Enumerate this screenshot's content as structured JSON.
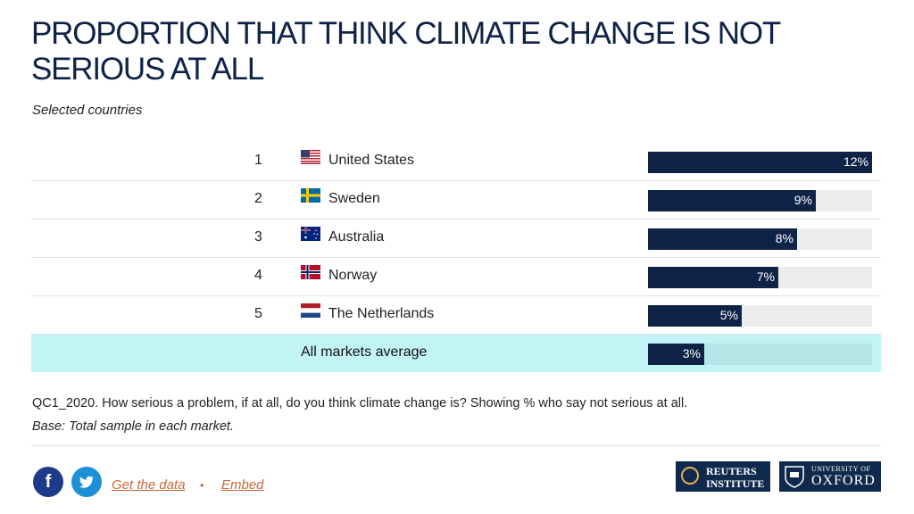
{
  "title": "PROPORTION THAT THINK CLIMATE CHANGE IS NOT SERIOUS AT ALL",
  "subtitle": "Selected countries",
  "chart_data": {
    "type": "bar",
    "orientation": "horizontal",
    "title": "PROPORTION THAT THINK CLIMATE CHANGE IS NOT SERIOUS AT ALL",
    "subtitle": "Selected countries",
    "xlim": [
      0,
      12
    ],
    "rows": [
      {
        "rank": "1",
        "flag": "us-flag-icon",
        "category": "United States",
        "value": 12,
        "label": "12%"
      },
      {
        "rank": "2",
        "flag": "sweden-flag-icon",
        "category": "Sweden",
        "value": 9,
        "label": "9%"
      },
      {
        "rank": "3",
        "flag": "australia-flag-icon",
        "category": "Australia",
        "value": 8,
        "label": "8%"
      },
      {
        "rank": "4",
        "flag": "norway-flag-icon",
        "category": "Norway",
        "value": 7,
        "label": "7%"
      },
      {
        "rank": "5",
        "flag": "netherlands-flag-icon",
        "category": "The Netherlands",
        "value": 5,
        "label": "5%"
      }
    ],
    "average": {
      "category": "All markets average",
      "value": 3,
      "label": "3%"
    },
    "colors": {
      "bar": "#0f2347",
      "track": "#ececec",
      "average_band": "#c2f3f5"
    }
  },
  "footnote": {
    "question": "QC1_2020. How serious a problem, if at all, do you think climate change is? Showing % who say not serious at all.",
    "base": "Base: Total sample in each market."
  },
  "footer": {
    "get_data": "Get the data",
    "separator": "•",
    "embed": "Embed",
    "reuters_line1": "REUTERS",
    "reuters_line2": "INSTITUTE",
    "oxford_line1": "UNIVERSITY OF",
    "oxford_line2": "OXFORD"
  }
}
